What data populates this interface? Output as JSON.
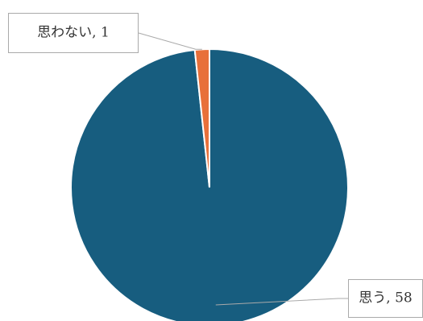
{
  "chart_data": {
    "type": "pie",
    "values": [
      58,
      1
    ],
    "value_labels": [
      "思う, 58",
      "思わない, 1"
    ],
    "colors": [
      "#175d7f",
      "#e8703a"
    ]
  }
}
